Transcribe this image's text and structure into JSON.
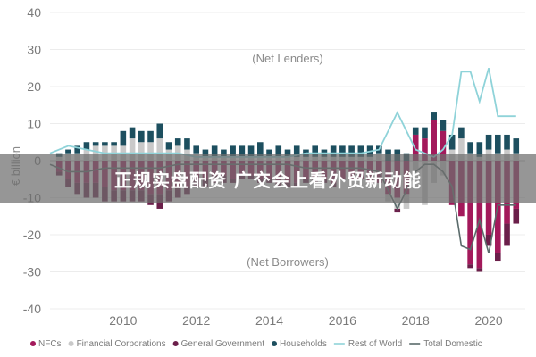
{
  "banner": {
    "text": "正规实盘配资 广交会上看外贸新动能"
  },
  "chart_data": {
    "type": "bar",
    "ylabel": "€ billion",
    "ylim": [
      -40,
      40
    ],
    "yticks": [
      40,
      30,
      20,
      10,
      0,
      -10,
      -20,
      -30,
      -40
    ],
    "xlim": [
      2008,
      2021
    ],
    "xticks": [
      2010,
      2012,
      2014,
      2016,
      2018,
      2020
    ],
    "annotations": [
      "(Net Lenders)",
      "(Net Borrowers)"
    ],
    "legend_position": "bottom",
    "colors": {
      "NFCs": "#a3195b",
      "Financial Corporations": "#c9c9c9",
      "General Government": "#6b1f4a",
      "Households": "#1d4f5f",
      "Rest of World": "#8fd3d9",
      "Total Domestic": "#5a6b6b"
    },
    "series": [
      {
        "name": "NFCs",
        "kind": "bar",
        "x": [
          2008.25,
          2008.5,
          2008.75,
          2009,
          2009.25,
          2009.5,
          2009.75,
          2010,
          2010.25,
          2010.5,
          2010.75,
          2011,
          2011.25,
          2011.5,
          2011.75,
          2012,
          2012.25,
          2012.5,
          2012.75,
          2013,
          2013.25,
          2013.5,
          2013.75,
          2014,
          2014.25,
          2014.5,
          2014.75,
          2015,
          2015.25,
          2015.5,
          2015.75,
          2016,
          2016.25,
          2016.5,
          2016.75,
          2017,
          2017.25,
          2017.5,
          2017.75,
          2018,
          2018.25,
          2018.5,
          2018.75,
          2019,
          2019.25,
          2019.5,
          2019.75,
          2020,
          2020.25,
          2020.5,
          2020.75
        ],
        "values": [
          -3,
          -5,
          -6,
          -6,
          -6,
          -7,
          -8,
          -8,
          -8,
          -8,
          -9,
          -9,
          -8,
          -7,
          -7,
          -5,
          -5,
          -4,
          -4,
          -5,
          -4,
          -4,
          -5,
          -5,
          -6,
          -6,
          -6,
          -5,
          -5,
          -5,
          -6,
          -5,
          -5,
          -5,
          -6,
          -6,
          -9,
          -10,
          -9,
          7,
          6,
          11,
          8,
          -12,
          -15,
          -28,
          -29,
          -20,
          -25,
          -17,
          -13
        ]
      },
      {
        "name": "Financial Corporations",
        "kind": "bar",
        "x": [
          2008.25,
          2008.5,
          2008.75,
          2009,
          2009.25,
          2009.5,
          2009.75,
          2010,
          2010.25,
          2010.5,
          2010.75,
          2011,
          2011.25,
          2011.5,
          2011.75,
          2012,
          2012.25,
          2012.5,
          2012.75,
          2013,
          2013.25,
          2013.5,
          2013.75,
          2014,
          2014.25,
          2014.5,
          2014.75,
          2015,
          2015.25,
          2015.5,
          2015.75,
          2016,
          2016.25,
          2016.5,
          2016.75,
          2017,
          2017.25,
          2017.5,
          2017.75,
          2018,
          2018.25,
          2018.5,
          2018.75,
          2019,
          2019.25,
          2019.5,
          2019.75,
          2020,
          2020.25,
          2020.5,
          2020.75
        ],
        "values": [
          1,
          2,
          2,
          3,
          4,
          4,
          4,
          4,
          6,
          5,
          5,
          6,
          3,
          4,
          3,
          2,
          1,
          1,
          1,
          1,
          1,
          1,
          1,
          1,
          1,
          1,
          1,
          1,
          1,
          1,
          1,
          1,
          1,
          1,
          1,
          2,
          -2,
          -3,
          -4,
          -3,
          -12,
          -6,
          -4,
          3,
          6,
          2,
          1,
          3,
          2,
          3,
          2
        ]
      },
      {
        "name": "General Government",
        "kind": "bar",
        "x": [
          2008.25,
          2008.5,
          2008.75,
          2009,
          2009.25,
          2009.5,
          2009.75,
          2010,
          2010.25,
          2010.5,
          2010.75,
          2011,
          2011.25,
          2011.5,
          2011.75,
          2012,
          2012.25,
          2012.5,
          2012.75,
          2013,
          2013.25,
          2013.5,
          2013.75,
          2014,
          2014.25,
          2014.5,
          2014.75,
          2015,
          2015.25,
          2015.5,
          2015.75,
          2016,
          2016.25,
          2016.5,
          2016.75,
          2017,
          2017.25,
          2017.5,
          2017.75,
          2018,
          2018.25,
          2018.5,
          2018.75,
          2019,
          2019.25,
          2019.5,
          2019.75,
          2020,
          2020.25,
          2020.5,
          2020.75
        ],
        "values": [
          -1,
          -2,
          -3,
          -4,
          -4,
          -4,
          -3,
          -3,
          -3,
          -3,
          -3,
          -4,
          -3,
          -3,
          -2,
          -2,
          -2,
          -2,
          -2,
          -1,
          -1,
          -1,
          -1,
          -1,
          -1,
          -1,
          -1,
          -1,
          -1,
          -1,
          -1,
          0,
          0,
          0,
          0,
          0,
          0,
          -1,
          0,
          0,
          0,
          0,
          0,
          0,
          0,
          -1,
          -1,
          -3,
          -2,
          -6,
          -4
        ]
      },
      {
        "name": "Households",
        "kind": "bar",
        "x": [
          2008.25,
          2008.5,
          2008.75,
          2009,
          2009.25,
          2009.5,
          2009.75,
          2010,
          2010.25,
          2010.5,
          2010.75,
          2011,
          2011.25,
          2011.5,
          2011.75,
          2012,
          2012.25,
          2012.5,
          2012.75,
          2013,
          2013.25,
          2013.5,
          2013.75,
          2014,
          2014.25,
          2014.5,
          2014.75,
          2015,
          2015.25,
          2015.5,
          2015.75,
          2016,
          2016.25,
          2016.5,
          2016.75,
          2017,
          2017.25,
          2017.5,
          2017.75,
          2018,
          2018.25,
          2018.5,
          2018.75,
          2019,
          2019.25,
          2019.5,
          2019.75,
          2020,
          2020.25,
          2020.5,
          2020.75
        ],
        "values": [
          1,
          1,
          2,
          2,
          1,
          1,
          1,
          4,
          3,
          3,
          3,
          4,
          2,
          2,
          3,
          2,
          2,
          3,
          2,
          3,
          3,
          3,
          4,
          2,
          3,
          2,
          3,
          2,
          3,
          2,
          3,
          3,
          3,
          3,
          3,
          2,
          3,
          3,
          2,
          2,
          3,
          2,
          3,
          4,
          3,
          3,
          4,
          4,
          5,
          4,
          4
        ]
      },
      {
        "name": "Rest of World",
        "kind": "line",
        "x": [
          2008,
          2008.5,
          2009,
          2009.5,
          2010,
          2010.5,
          2011,
          2011.5,
          2012,
          2012.5,
          2013,
          2013.5,
          2014,
          2014.5,
          2015,
          2015.5,
          2016,
          2016.5,
          2017,
          2017.5,
          2017.75,
          2018,
          2018.25,
          2018.5,
          2018.75,
          2019,
          2019.25,
          2019.5,
          2019.75,
          2020,
          2020.25,
          2020.5,
          2020.75
        ],
        "values": [
          2,
          4,
          3,
          2,
          2,
          2,
          2,
          2,
          1,
          1,
          1,
          1,
          1,
          1,
          2,
          2,
          2,
          2,
          3,
          13,
          8,
          3,
          2,
          1,
          3,
          7,
          24,
          24,
          16,
          25,
          12,
          12,
          12
        ]
      },
      {
        "name": "Total Domestic",
        "kind": "line",
        "x": [
          2008,
          2008.5,
          2009,
          2009.5,
          2010,
          2010.5,
          2011,
          2011.5,
          2012,
          2012.5,
          2013,
          2013.5,
          2014,
          2014.5,
          2015,
          2015.5,
          2016,
          2016.5,
          2017,
          2017.5,
          2017.75,
          2018,
          2018.25,
          2018.5,
          2018.75,
          2019,
          2019.25,
          2019.5,
          2019.75,
          2020,
          2020.25,
          2020.5,
          2020.75
        ],
        "values": [
          -1,
          -3,
          -3,
          -2,
          -2,
          -2,
          -2,
          -1,
          -1,
          -1,
          -1,
          -1,
          -1,
          -1,
          -2,
          -2,
          -2,
          -2,
          -3,
          -13,
          -8,
          -3,
          -1,
          -1,
          -3,
          -7,
          -23,
          -24,
          -16,
          -25,
          -12,
          -12,
          -12
        ]
      }
    ]
  }
}
